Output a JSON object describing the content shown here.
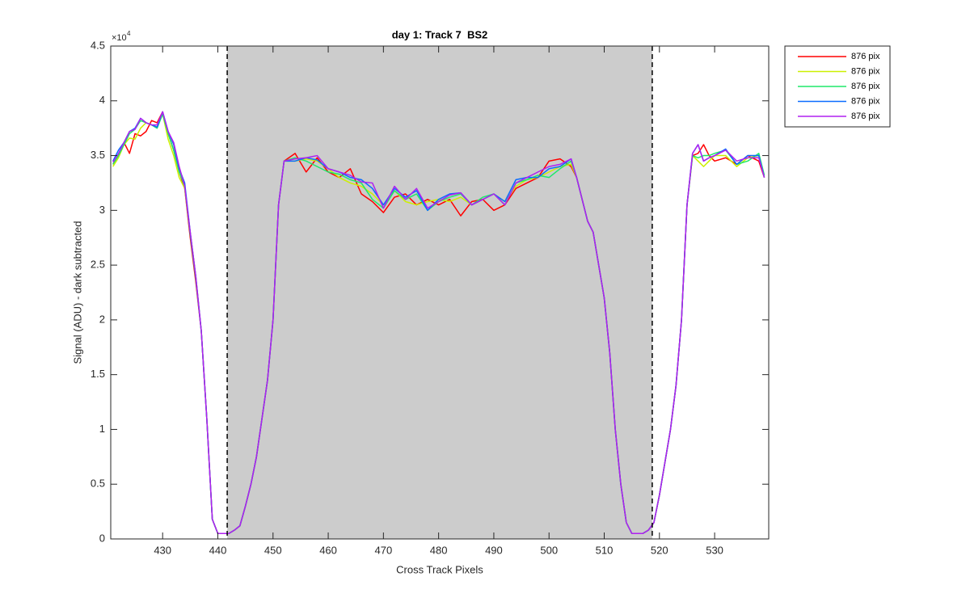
{
  "chart_data": {
    "type": "line",
    "title": "day 1: Track 7  BS2",
    "x_label": "Cross Track Pixels",
    "y_label": "Signal (ADU) - dark subtracted",
    "y_multiplier": "×10",
    "y_multiplier_exponent": "4",
    "xlim": [
      420.6,
      539.8
    ],
    "ylim": [
      0,
      4.5
    ],
    "xticks": [
      430,
      440,
      450,
      460,
      470,
      480,
      490,
      500,
      510,
      520,
      530
    ],
    "yticks": [
      0,
      0.5,
      1,
      1.5,
      2,
      2.5,
      3,
      3.5,
      4,
      4.5
    ],
    "shaded_region": [
      441.7,
      518.7
    ],
    "shaded_color": "#cccccc",
    "legend_position": "outside-top-right",
    "x": [
      421,
      422,
      423,
      424,
      425,
      426,
      427,
      428,
      429,
      430,
      431,
      432,
      433,
      434,
      435,
      436,
      437,
      438,
      439,
      440,
      442,
      443,
      444,
      445,
      446,
      447,
      448,
      449,
      450,
      451,
      452,
      454,
      456,
      458,
      460,
      462,
      464,
      466,
      468,
      470,
      472,
      474,
      476,
      478,
      480,
      482,
      484,
      486,
      488,
      490,
      492,
      494,
      496,
      498,
      500,
      502,
      504,
      505,
      506,
      507,
      508,
      509,
      510,
      511,
      512,
      513,
      514,
      515,
      516,
      517,
      518,
      519,
      520,
      521,
      522,
      523,
      524,
      525,
      526,
      527,
      528,
      529,
      530,
      532,
      534,
      536,
      538,
      539
    ],
    "series": [
      {
        "name": "876 pix",
        "color": "#ff0000",
        "values": [
          3.42,
          3.5,
          3.62,
          3.52,
          3.7,
          3.68,
          3.72,
          3.82,
          3.8,
          3.9,
          3.7,
          3.55,
          3.35,
          3.2,
          2.75,
          2.35,
          1.9,
          1.1,
          0.18,
          0.05,
          0.05,
          0.08,
          0.12,
          0.3,
          0.5,
          0.75,
          1.1,
          1.45,
          2.0,
          3.05,
          3.45,
          3.52,
          3.35,
          3.48,
          3.35,
          3.3,
          3.38,
          3.15,
          3.08,
          2.98,
          3.12,
          3.15,
          3.05,
          3.1,
          3.05,
          3.1,
          2.95,
          3.08,
          3.1,
          3.0,
          3.05,
          3.2,
          3.25,
          3.3,
          3.45,
          3.47,
          3.4,
          3.3,
          3.1,
          2.9,
          2.8,
          2.5,
          2.2,
          1.7,
          1.0,
          0.5,
          0.15,
          0.05,
          0.05,
          0.05,
          0.08,
          0.15,
          0.4,
          0.7,
          1.0,
          1.4,
          2.0,
          3.05,
          3.5,
          3.52,
          3.6,
          3.5,
          3.45,
          3.48,
          3.42,
          3.5,
          3.45,
          3.3
        ]
      },
      {
        "name": "876 pix",
        "color": "#ccf000",
        "values": [
          3.4,
          3.48,
          3.6,
          3.66,
          3.65,
          3.75,
          3.8,
          3.78,
          3.76,
          3.88,
          3.65,
          3.5,
          3.3,
          3.2,
          2.8,
          2.4,
          1.9,
          1.1,
          0.18,
          0.05,
          0.05,
          0.08,
          0.12,
          0.3,
          0.5,
          0.75,
          1.1,
          1.45,
          2.0,
          3.05,
          3.45,
          3.45,
          3.47,
          3.45,
          3.38,
          3.3,
          3.25,
          3.22,
          3.15,
          3.05,
          3.18,
          3.08,
          3.05,
          3.08,
          3.1,
          3.08,
          3.12,
          3.05,
          3.1,
          3.15,
          3.08,
          3.22,
          3.28,
          3.3,
          3.35,
          3.4,
          3.42,
          3.3,
          3.1,
          2.9,
          2.8,
          2.5,
          2.2,
          1.7,
          1.0,
          0.5,
          0.15,
          0.05,
          0.05,
          0.05,
          0.08,
          0.15,
          0.4,
          0.7,
          1.0,
          1.4,
          2.0,
          3.05,
          3.5,
          3.45,
          3.4,
          3.45,
          3.5,
          3.5,
          3.4,
          3.48,
          3.5,
          3.3
        ]
      },
      {
        "name": "876 pix",
        "color": "#1ee86a",
        "values": [
          3.42,
          3.5,
          3.6,
          3.7,
          3.74,
          3.82,
          3.8,
          3.78,
          3.75,
          3.88,
          3.7,
          3.55,
          3.35,
          3.22,
          2.78,
          2.38,
          1.9,
          1.1,
          0.18,
          0.05,
          0.05,
          0.08,
          0.12,
          0.3,
          0.5,
          0.75,
          1.1,
          1.45,
          2.0,
          3.05,
          3.45,
          3.48,
          3.45,
          3.4,
          3.35,
          3.33,
          3.28,
          3.25,
          3.1,
          3.02,
          3.18,
          3.1,
          3.15,
          3.0,
          3.08,
          3.12,
          3.15,
          3.05,
          3.12,
          3.15,
          3.05,
          3.25,
          3.28,
          3.32,
          3.3,
          3.38,
          3.45,
          3.3,
          3.1,
          2.9,
          2.8,
          2.5,
          2.2,
          1.7,
          1.0,
          0.5,
          0.15,
          0.05,
          0.05,
          0.05,
          0.08,
          0.15,
          0.4,
          0.7,
          1.0,
          1.4,
          2.0,
          3.05,
          3.5,
          3.48,
          3.5,
          3.5,
          3.52,
          3.55,
          3.42,
          3.45,
          3.52,
          3.32
        ]
      },
      {
        "name": "876 pix",
        "color": "#0a6cff",
        "values": [
          3.45,
          3.55,
          3.62,
          3.72,
          3.75,
          3.84,
          3.8,
          3.78,
          3.76,
          3.9,
          3.72,
          3.6,
          3.38,
          3.25,
          2.8,
          2.4,
          1.9,
          1.1,
          0.18,
          0.05,
          0.05,
          0.08,
          0.12,
          0.3,
          0.5,
          0.75,
          1.1,
          1.45,
          2.0,
          3.05,
          3.45,
          3.45,
          3.48,
          3.46,
          3.38,
          3.35,
          3.3,
          3.28,
          3.2,
          3.05,
          3.2,
          3.12,
          3.18,
          3.0,
          3.1,
          3.15,
          3.16,
          3.05,
          3.1,
          3.15,
          3.08,
          3.28,
          3.3,
          3.3,
          3.38,
          3.4,
          3.47,
          3.3,
          3.1,
          2.9,
          2.8,
          2.5,
          2.2,
          1.7,
          1.0,
          0.5,
          0.15,
          0.05,
          0.05,
          0.05,
          0.08,
          0.15,
          0.4,
          0.7,
          1.0,
          1.4,
          2.0,
          3.05,
          3.52,
          3.6,
          3.45,
          3.48,
          3.5,
          3.56,
          3.42,
          3.5,
          3.5,
          3.3
        ]
      },
      {
        "name": "876 pix",
        "color": "#b020f0",
        "values": [
          3.44,
          3.52,
          3.62,
          3.72,
          3.74,
          3.84,
          3.8,
          3.78,
          3.78,
          3.9,
          3.72,
          3.62,
          3.4,
          3.22,
          2.8,
          2.4,
          1.9,
          1.1,
          0.18,
          0.05,
          0.05,
          0.08,
          0.12,
          0.3,
          0.5,
          0.75,
          1.1,
          1.45,
          2.0,
          3.05,
          3.45,
          3.47,
          3.48,
          3.5,
          3.38,
          3.35,
          3.32,
          3.26,
          3.25,
          3.02,
          3.22,
          3.1,
          3.2,
          3.02,
          3.08,
          3.14,
          3.16,
          3.05,
          3.1,
          3.15,
          3.05,
          3.25,
          3.3,
          3.35,
          3.4,
          3.42,
          3.47,
          3.3,
          3.1,
          2.9,
          2.8,
          2.5,
          2.2,
          1.7,
          1.0,
          0.5,
          0.15,
          0.05,
          0.05,
          0.05,
          0.08,
          0.15,
          0.4,
          0.7,
          1.0,
          1.4,
          2.0,
          3.05,
          3.52,
          3.6,
          3.45,
          3.48,
          3.5,
          3.55,
          3.45,
          3.48,
          3.48,
          3.3
        ]
      }
    ]
  }
}
